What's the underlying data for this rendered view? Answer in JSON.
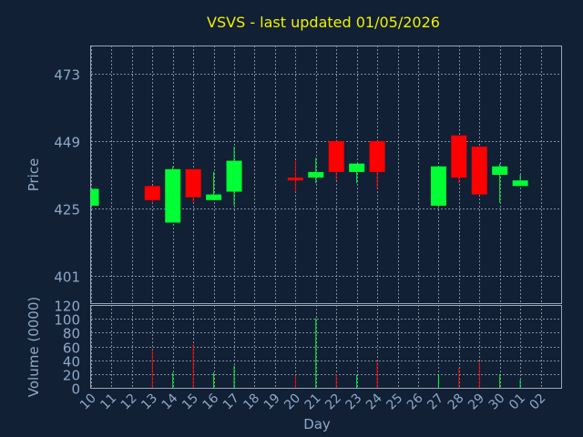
{
  "chart_data": [
    {
      "type": "candlestick",
      "title": "VSVS - last updated 01/05/2026",
      "ylabel": "Price",
      "yticks": [
        401,
        425,
        449,
        473
      ],
      "ylim": [
        391,
        483
      ],
      "grid": true,
      "colors": {
        "up": "#00ff33",
        "down": "#ff0000",
        "background": "#112034",
        "title": "#f0f000",
        "axis_text": "#8ea8c8"
      },
      "x": [
        "10",
        "11",
        "12",
        "13",
        "14",
        "15",
        "16",
        "17",
        "18",
        "19",
        "20",
        "21",
        "22",
        "23",
        "24",
        "25",
        "26",
        "27",
        "28",
        "29",
        "30",
        "01",
        "02"
      ],
      "candles": [
        {
          "day": "10",
          "open": 426,
          "close": 432,
          "high": 432,
          "low": 426
        },
        {
          "day": "13",
          "open": 433,
          "close": 428,
          "high": 433,
          "low": 427
        },
        {
          "day": "14",
          "open": 420,
          "close": 439,
          "high": 440,
          "low": 420
        },
        {
          "day": "15",
          "open": 439,
          "close": 429,
          "high": 439,
          "low": 427
        },
        {
          "day": "16",
          "open": 428,
          "close": 430,
          "high": 438,
          "low": 428
        },
        {
          "day": "17",
          "open": 431,
          "close": 442,
          "high": 447,
          "low": 426
        },
        {
          "day": "20",
          "open": 436,
          "close": 435,
          "high": 442,
          "low": 431
        },
        {
          "day": "21",
          "open": 436,
          "close": 438,
          "high": 443,
          "low": 434
        },
        {
          "day": "22",
          "open": 449,
          "close": 438,
          "high": 449,
          "low": 435
        },
        {
          "day": "23",
          "open": 438,
          "close": 441,
          "high": 441,
          "low": 434
        },
        {
          "day": "24",
          "open": 449,
          "close": 438,
          "high": 449,
          "low": 432
        },
        {
          "day": "27",
          "open": 426,
          "close": 440,
          "high": 440,
          "low": 426
        },
        {
          "day": "28",
          "open": 451,
          "close": 436,
          "high": 451,
          "low": 434
        },
        {
          "day": "29",
          "open": 447,
          "close": 430,
          "high": 447,
          "low": 430
        },
        {
          "day": "30",
          "open": 437,
          "close": 440,
          "high": 441,
          "low": 427
        },
        {
          "day": "01",
          "open": 433,
          "close": 435,
          "high": 437,
          "low": 433
        }
      ]
    },
    {
      "type": "bar",
      "ylabel": "Volume (0000)",
      "xlabel": "Day",
      "yticks": [
        0,
        20,
        40,
        60,
        80,
        100,
        120
      ],
      "ylim": [
        0,
        120
      ],
      "grid": true,
      "x": [
        "10",
        "11",
        "12",
        "13",
        "14",
        "15",
        "16",
        "17",
        "18",
        "19",
        "20",
        "21",
        "22",
        "23",
        "24",
        "25",
        "26",
        "27",
        "28",
        "29",
        "30",
        "01",
        "02"
      ],
      "bars": [
        {
          "day": "13",
          "value": 55,
          "direction": "down"
        },
        {
          "day": "14",
          "value": 22,
          "direction": "up"
        },
        {
          "day": "15",
          "value": 63,
          "direction": "down"
        },
        {
          "day": "16",
          "value": 22,
          "direction": "up"
        },
        {
          "day": "17",
          "value": 32,
          "direction": "up"
        },
        {
          "day": "20",
          "value": 18,
          "direction": "down"
        },
        {
          "day": "21",
          "value": 101,
          "direction": "up"
        },
        {
          "day": "22",
          "value": 20,
          "direction": "down"
        },
        {
          "day": "23",
          "value": 19,
          "direction": "up"
        },
        {
          "day": "24",
          "value": 38,
          "direction": "down"
        },
        {
          "day": "27",
          "value": 20,
          "direction": "up"
        },
        {
          "day": "28",
          "value": 29,
          "direction": "down"
        },
        {
          "day": "29",
          "value": 38,
          "direction": "down"
        },
        {
          "day": "30",
          "value": 20,
          "direction": "up"
        },
        {
          "day": "01",
          "value": 12,
          "direction": "up"
        }
      ]
    }
  ]
}
